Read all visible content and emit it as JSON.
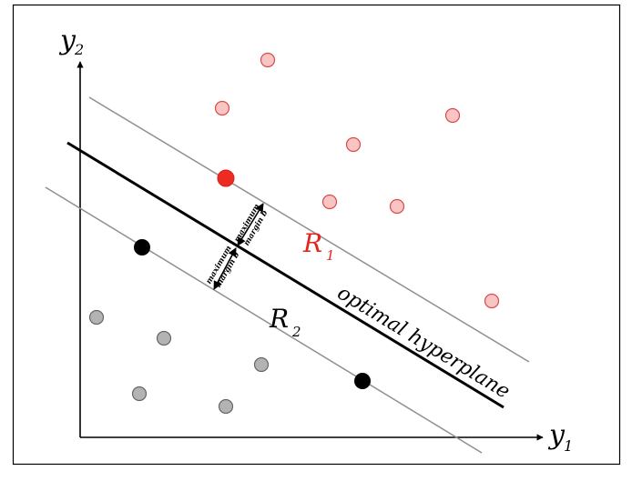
{
  "axes": {
    "x_label": "y",
    "x_label_sub": "1",
    "y_label": "y",
    "y_label_sub": "2"
  },
  "regions": {
    "r1_letter": "R",
    "r1_sub": "1",
    "r2_letter": "R",
    "r2_sub": "2"
  },
  "hyperplane_label": "optimal hyperplane",
  "margin_labels": {
    "upper_line1": "maximum",
    "upper_line2": "margin b",
    "lower_line1": "maximum",
    "lower_line2": "margin b"
  },
  "colors": {
    "class1_fill": "#f9c4c4",
    "class1_stroke": "#d94a4a",
    "class1_support": "#ee2b22",
    "class2_fill": "#b3b3b3",
    "class2_stroke": "#666666",
    "class2_support": "#000000",
    "margin_line": "#8f8f8f",
    "hyperplane": "#000000",
    "region1_text": "#e2261f",
    "region2_text": "#000000"
  }
}
